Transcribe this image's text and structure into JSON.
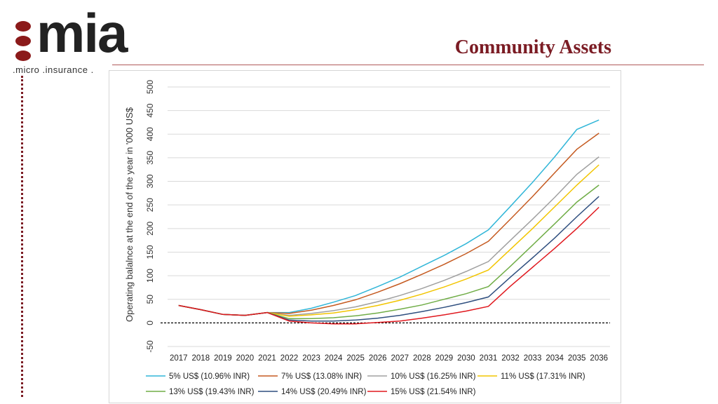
{
  "logo": {
    "word": "mia",
    "tagline": ".micro .insurance ."
  },
  "page": {
    "title": "Community Assets"
  },
  "colors": {
    "title": "#7b1c24",
    "brand_dot": "#8b1a1a"
  },
  "chart_data": {
    "type": "line",
    "ylabel": "Operating balalnce at the end of the year in '000 US$",
    "xlabel": "",
    "ylim": [
      -50,
      500
    ],
    "yticks": [
      -50,
      0,
      50,
      100,
      150,
      200,
      250,
      300,
      350,
      400,
      450,
      500
    ],
    "x": [
      "2017",
      "2018",
      "2019",
      "2020",
      "2021",
      "2022",
      "2023",
      "2024",
      "2025",
      "2026",
      "2027",
      "2028",
      "2029",
      "2030",
      "2031",
      "2032",
      "2033",
      "2034",
      "2035",
      "2036"
    ],
    "grid": true,
    "legend_position": "bottom",
    "reference_line": {
      "y": 0,
      "style": "dashed"
    },
    "series": [
      {
        "name": "5% US$ (10.96% INR)",
        "color": "#31b6d8",
        "values": [
          37,
          28,
          18,
          16,
          22,
          22,
          31,
          44,
          58,
          77,
          97,
          120,
          143,
          168,
          197,
          247,
          298,
          352,
          410,
          430
        ]
      },
      {
        "name": "7% US$ (13.08% INR)",
        "color": "#c55a20",
        "values": [
          37,
          28,
          18,
          16,
          22,
          20,
          27,
          37,
          49,
          65,
          83,
          103,
          124,
          147,
          173,
          220,
          268,
          318,
          368,
          402
        ]
      },
      {
        "name": "10% US$ (16.25% INR)",
        "color": "#a0a0a0",
        "values": [
          37,
          28,
          18,
          16,
          22,
          16,
          20,
          26,
          34,
          45,
          58,
          73,
          90,
          109,
          130,
          175,
          220,
          266,
          315,
          352
        ]
      },
      {
        "name": "11% US$ (17.31% INR)",
        "color": "#f2c500",
        "values": [
          37,
          28,
          18,
          16,
          22,
          14,
          17,
          21,
          28,
          37,
          48,
          61,
          76,
          93,
          112,
          156,
          200,
          246,
          292,
          335
        ]
      },
      {
        "name": "13% US$ (19.43% INR)",
        "color": "#70ad47",
        "values": [
          37,
          28,
          18,
          16,
          22,
          9,
          9,
          11,
          15,
          21,
          29,
          38,
          50,
          62,
          77,
          120,
          165,
          210,
          256,
          292
        ]
      },
      {
        "name": "14% US$ (20.49% INR)",
        "color": "#2f4f7f",
        "values": [
          37,
          28,
          18,
          16,
          22,
          6,
          4,
          4,
          6,
          10,
          16,
          24,
          33,
          43,
          55,
          97,
          138,
          180,
          225,
          268
        ]
      },
      {
        "name": "15% US$ (21.54% INR)",
        "color": "#e0181e",
        "values": [
          37,
          28,
          18,
          16,
          22,
          4,
          0,
          -2,
          -2,
          1,
          4,
          10,
          17,
          25,
          35,
          78,
          118,
          158,
          200,
          245
        ]
      }
    ]
  }
}
